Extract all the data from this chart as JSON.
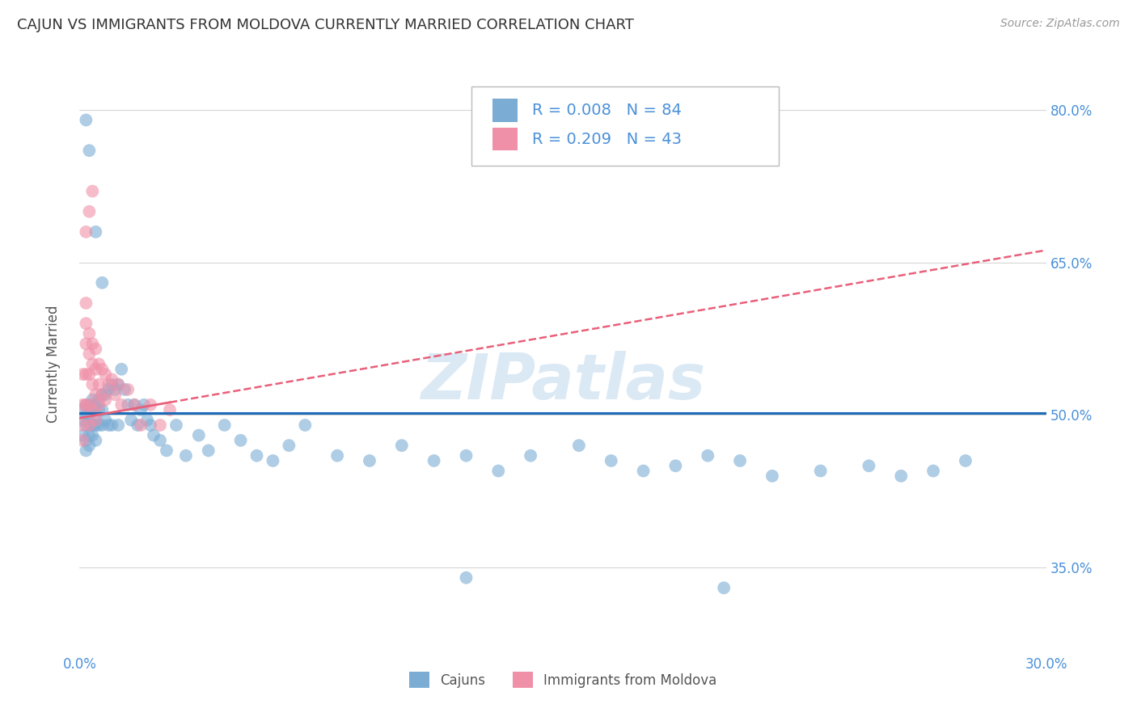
{
  "title": "CAJUN VS IMMIGRANTS FROM MOLDOVA CURRENTLY MARRIED CORRELATION CHART",
  "source": "Source: ZipAtlas.com",
  "ylabel": "Currently Married",
  "xlim": [
    0.0,
    0.3
  ],
  "ylim": [
    0.27,
    0.83
  ],
  "xtick_positions": [
    0.0,
    0.05,
    0.1,
    0.15,
    0.2,
    0.25,
    0.3
  ],
  "xticklabels": [
    "0.0%",
    "",
    "",
    "",
    "",
    "",
    "30.0%"
  ],
  "ytick_positions": [
    0.35,
    0.5,
    0.65,
    0.8
  ],
  "ytick_labels": [
    "35.0%",
    "50.0%",
    "65.0%",
    "80.0%"
  ],
  "legend_R_cajun": "0.008",
  "legend_N_cajun": "84",
  "legend_R_moldova": "0.209",
  "legend_N_moldova": "43",
  "cajun_scatter_x": [
    0.001,
    0.001,
    0.001,
    0.002,
    0.002,
    0.002,
    0.002,
    0.002,
    0.003,
    0.003,
    0.003,
    0.003,
    0.003,
    0.004,
    0.004,
    0.004,
    0.004,
    0.005,
    0.005,
    0.005,
    0.005,
    0.006,
    0.006,
    0.006,
    0.007,
    0.007,
    0.007,
    0.008,
    0.008,
    0.009,
    0.009,
    0.01,
    0.01,
    0.011,
    0.012,
    0.012,
    0.013,
    0.014,
    0.015,
    0.016,
    0.017,
    0.018,
    0.019,
    0.02,
    0.021,
    0.022,
    0.023,
    0.025,
    0.027,
    0.03,
    0.033,
    0.037,
    0.04,
    0.045,
    0.05,
    0.055,
    0.06,
    0.065,
    0.07,
    0.08,
    0.09,
    0.1,
    0.11,
    0.12,
    0.13,
    0.14,
    0.155,
    0.165,
    0.175,
    0.185,
    0.195,
    0.205,
    0.215,
    0.23,
    0.245,
    0.255,
    0.265,
    0.275,
    0.002,
    0.003,
    0.005,
    0.007,
    0.12,
    0.2
  ],
  "cajun_scatter_y": [
    0.505,
    0.495,
    0.48,
    0.51,
    0.5,
    0.49,
    0.475,
    0.465,
    0.51,
    0.5,
    0.49,
    0.48,
    0.47,
    0.515,
    0.505,
    0.49,
    0.48,
    0.51,
    0.5,
    0.49,
    0.475,
    0.515,
    0.505,
    0.49,
    0.52,
    0.505,
    0.49,
    0.52,
    0.495,
    0.525,
    0.49,
    0.53,
    0.49,
    0.525,
    0.53,
    0.49,
    0.545,
    0.525,
    0.51,
    0.495,
    0.51,
    0.49,
    0.505,
    0.51,
    0.495,
    0.49,
    0.48,
    0.475,
    0.465,
    0.49,
    0.46,
    0.48,
    0.465,
    0.49,
    0.475,
    0.46,
    0.455,
    0.47,
    0.49,
    0.46,
    0.455,
    0.47,
    0.455,
    0.46,
    0.445,
    0.46,
    0.47,
    0.455,
    0.445,
    0.45,
    0.46,
    0.455,
    0.44,
    0.445,
    0.45,
    0.44,
    0.445,
    0.455,
    0.79,
    0.76,
    0.68,
    0.63,
    0.34,
    0.33
  ],
  "moldova_scatter_x": [
    0.001,
    0.001,
    0.001,
    0.001,
    0.002,
    0.002,
    0.002,
    0.002,
    0.002,
    0.003,
    0.003,
    0.003,
    0.003,
    0.003,
    0.004,
    0.004,
    0.004,
    0.004,
    0.005,
    0.005,
    0.005,
    0.005,
    0.006,
    0.006,
    0.006,
    0.007,
    0.007,
    0.008,
    0.008,
    0.009,
    0.01,
    0.011,
    0.012,
    0.013,
    0.015,
    0.017,
    0.019,
    0.022,
    0.025,
    0.028,
    0.002,
    0.003,
    0.004
  ],
  "moldova_scatter_y": [
    0.54,
    0.51,
    0.49,
    0.475,
    0.61,
    0.59,
    0.57,
    0.54,
    0.51,
    0.58,
    0.56,
    0.54,
    0.51,
    0.49,
    0.57,
    0.55,
    0.53,
    0.505,
    0.565,
    0.545,
    0.52,
    0.495,
    0.55,
    0.53,
    0.51,
    0.545,
    0.52,
    0.54,
    0.515,
    0.53,
    0.535,
    0.52,
    0.53,
    0.51,
    0.525,
    0.51,
    0.49,
    0.51,
    0.49,
    0.505,
    0.68,
    0.7,
    0.72
  ],
  "cajun_line_color": "#1e6bb8",
  "moldova_line_color": "#e8607a",
  "scatter_cajun_color": "#7bacd4",
  "scatter_moldova_color": "#f090a8",
  "watermark": "ZIPatlas",
  "background_color": "#ffffff",
  "grid_color": "#cccccc",
  "title_color": "#333333",
  "axis_label_color": "#4a90d9",
  "source_color": "#999999",
  "cajun_line_intercept": 0.502,
  "cajun_line_slope": 0.0,
  "moldova_line_intercept": 0.497,
  "moldova_line_slope": 0.55
}
